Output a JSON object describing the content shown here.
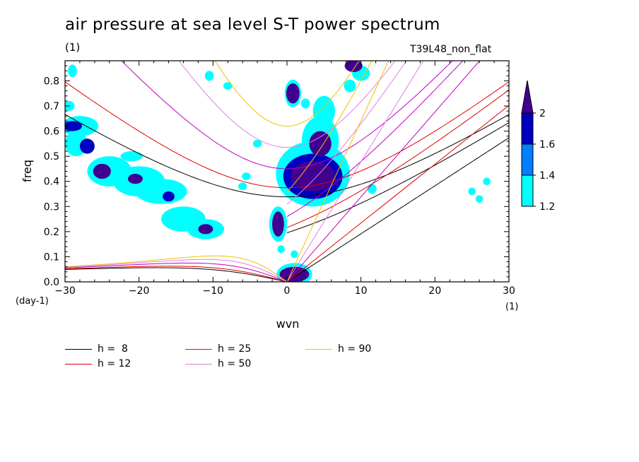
{
  "title": "air pressure at sea level S-T power spectrum",
  "units_label": "(1)",
  "experiment": "T39L48_non_flat",
  "colors": {
    "axis": "#000000",
    "shade_1_2": "#00ffff",
    "shade_1_4": "#0080ff",
    "shade_1_6": "#0000c0",
    "shade_2": "#400090",
    "h8": "#000000",
    "h12": "#e00000",
    "h25": "#c000c0",
    "h50": "#e080e0",
    "h90": "#f0c000"
  },
  "chart_data": {
    "type": "heatmap",
    "title": "air pressure at sea level S-T power spectrum",
    "xlabel": "wvn",
    "xlabel_unit": "(1)",
    "ylabel": "freq",
    "ylabel_unit": "(day-1)",
    "xlim": [
      -30,
      30
    ],
    "ylim": [
      0,
      0.88
    ],
    "x_ticks": [
      -30,
      -20,
      -10,
      0,
      10,
      20,
      30
    ],
    "y_ticks": [
      0.0,
      0.1,
      0.2,
      0.3,
      0.4,
      0.5,
      0.6,
      0.7,
      0.8
    ],
    "y_tick_labels": [
      "0.0",
      "0.1",
      "0.2",
      "0.3",
      "0.4",
      "0.5",
      "0.6",
      "0.7",
      "0.8"
    ],
    "colorbar": {
      "levels": [
        1.2,
        1.4,
        1.6,
        2
      ],
      "labels": [
        "1.2",
        "1.4",
        "1.6",
        "2"
      ],
      "colors": [
        "#00ffff",
        "#0080ff",
        "#0000c0",
        "#400090"
      ]
    },
    "dispersion_curves": [
      {
        "name": "h =  8",
        "h": 8,
        "color": "#000000"
      },
      {
        "name": "h = 12",
        "h": 12,
        "color": "#e00000"
      },
      {
        "name": "h = 25",
        "h": 25,
        "color": "#c000c0"
      },
      {
        "name": "h = 50",
        "h": 50,
        "color": "#e080e0"
      },
      {
        "name": "h = 90",
        "h": 90,
        "color": "#f0c000"
      }
    ],
    "shaded_blobs": [
      {
        "x": 0.8,
        "y": 0.75,
        "rx": 0.9,
        "ry": 0.04,
        "level": 2
      },
      {
        "x": 0.8,
        "y": 0.75,
        "rx": 1.1,
        "ry": 0.055,
        "level": 1.2
      },
      {
        "x": -1.2,
        "y": 0.23,
        "rx": 0.8,
        "ry": 0.05,
        "level": 2
      },
      {
        "x": -1.2,
        "y": 0.23,
        "rx": 1.2,
        "ry": 0.07,
        "level": 1.2
      },
      {
        "x": 1.0,
        "y": 0.03,
        "rx": 2.0,
        "ry": 0.03,
        "level": 2
      },
      {
        "x": 1.0,
        "y": 0.03,
        "rx": 2.4,
        "ry": 0.045,
        "level": 1.2
      },
      {
        "x": 3.5,
        "y": 0.42,
        "rx": 3.0,
        "ry": 0.06,
        "level": 2
      },
      {
        "x": 3.5,
        "y": 0.42,
        "rx": 4.0,
        "ry": 0.09,
        "level": 1.6
      },
      {
        "x": 3.5,
        "y": 0.43,
        "rx": 5.0,
        "ry": 0.13,
        "level": 1.2
      },
      {
        "x": 4.5,
        "y": 0.55,
        "rx": 1.5,
        "ry": 0.05,
        "level": 2
      },
      {
        "x": 4.5,
        "y": 0.56,
        "rx": 2.5,
        "ry": 0.1,
        "level": 1.2
      },
      {
        "x": 5.0,
        "y": 0.68,
        "rx": 1.5,
        "ry": 0.06,
        "level": 1.2
      },
      {
        "x": 9.0,
        "y": 0.86,
        "rx": 1.2,
        "ry": 0.025,
        "level": 2
      },
      {
        "x": -25.0,
        "y": 0.44,
        "rx": 1.2,
        "ry": 0.03,
        "level": 2
      },
      {
        "x": -24.0,
        "y": 0.44,
        "rx": 3.0,
        "ry": 0.06,
        "level": 1.2
      },
      {
        "x": -20.5,
        "y": 0.41,
        "rx": 1.0,
        "ry": 0.02,
        "level": 2
      },
      {
        "x": -20.0,
        "y": 0.4,
        "rx": 3.5,
        "ry": 0.06,
        "level": 1.2
      },
      {
        "x": -17.0,
        "y": 0.36,
        "rx": 3.5,
        "ry": 0.05,
        "level": 1.2
      },
      {
        "x": -16.0,
        "y": 0.34,
        "rx": 0.8,
        "ry": 0.02,
        "level": 1.6
      },
      {
        "x": -14.0,
        "y": 0.25,
        "rx": 3.0,
        "ry": 0.05,
        "level": 1.2
      },
      {
        "x": -11.0,
        "y": 0.21,
        "rx": 1.0,
        "ry": 0.02,
        "level": 2
      },
      {
        "x": -11.0,
        "y": 0.21,
        "rx": 2.5,
        "ry": 0.04,
        "level": 1.2
      },
      {
        "x": -29.0,
        "y": 0.62,
        "rx": 1.3,
        "ry": 0.02,
        "level": 1.6
      },
      {
        "x": -28.0,
        "y": 0.62,
        "rx": 2.5,
        "ry": 0.04,
        "level": 1.2
      },
      {
        "x": -28.5,
        "y": 0.55,
        "rx": 1.5,
        "ry": 0.05,
        "level": 1.2
      },
      {
        "x": -27.0,
        "y": 0.54,
        "rx": 1.0,
        "ry": 0.03,
        "level": 1.6
      },
      {
        "x": -29.5,
        "y": 0.7,
        "rx": 0.8,
        "ry": 0.02,
        "level": 1.2
      },
      {
        "x": -29.0,
        "y": 0.84,
        "rx": 0.6,
        "ry": 0.025,
        "level": 1.2
      },
      {
        "x": -10.5,
        "y": 0.82,
        "rx": 0.6,
        "ry": 0.02,
        "level": 1.2
      },
      {
        "x": -8.0,
        "y": 0.78,
        "rx": 0.6,
        "ry": 0.015,
        "level": 1.2
      },
      {
        "x": 8.5,
        "y": 0.78,
        "rx": 0.8,
        "ry": 0.025,
        "level": 1.2
      },
      {
        "x": 10.0,
        "y": 0.83,
        "rx": 1.2,
        "ry": 0.03,
        "level": 1.2
      },
      {
        "x": 2.5,
        "y": 0.71,
        "rx": 0.6,
        "ry": 0.02,
        "level": 1.2
      },
      {
        "x": 11.5,
        "y": 0.37,
        "rx": 0.6,
        "ry": 0.02,
        "level": 1.2
      },
      {
        "x": 27.0,
        "y": 0.4,
        "rx": 0.5,
        "ry": 0.015,
        "level": 1.2
      },
      {
        "x": 25.0,
        "y": 0.36,
        "rx": 0.5,
        "ry": 0.015,
        "level": 1.2
      },
      {
        "x": 26.0,
        "y": 0.33,
        "rx": 0.5,
        "ry": 0.015,
        "level": 1.2
      },
      {
        "x": -21.0,
        "y": 0.5,
        "rx": 1.5,
        "ry": 0.02,
        "level": 1.2
      },
      {
        "x": -5.5,
        "y": 0.42,
        "rx": 0.6,
        "ry": 0.015,
        "level": 1.2
      },
      {
        "x": -4.0,
        "y": 0.55,
        "rx": 0.6,
        "ry": 0.015,
        "level": 1.2
      },
      {
        "x": -6.0,
        "y": 0.38,
        "rx": 0.6,
        "ry": 0.015,
        "level": 1.2
      },
      {
        "x": -0.8,
        "y": 0.13,
        "rx": 0.5,
        "ry": 0.015,
        "level": 1.2
      },
      {
        "x": 1.0,
        "y": 0.11,
        "rx": 0.5,
        "ry": 0.015,
        "level": 1.2
      }
    ]
  },
  "legend": {
    "h8": "h =  8",
    "h12": "h = 12",
    "h25": "h = 25",
    "h50": "h = 50",
    "h90": "h = 90"
  }
}
